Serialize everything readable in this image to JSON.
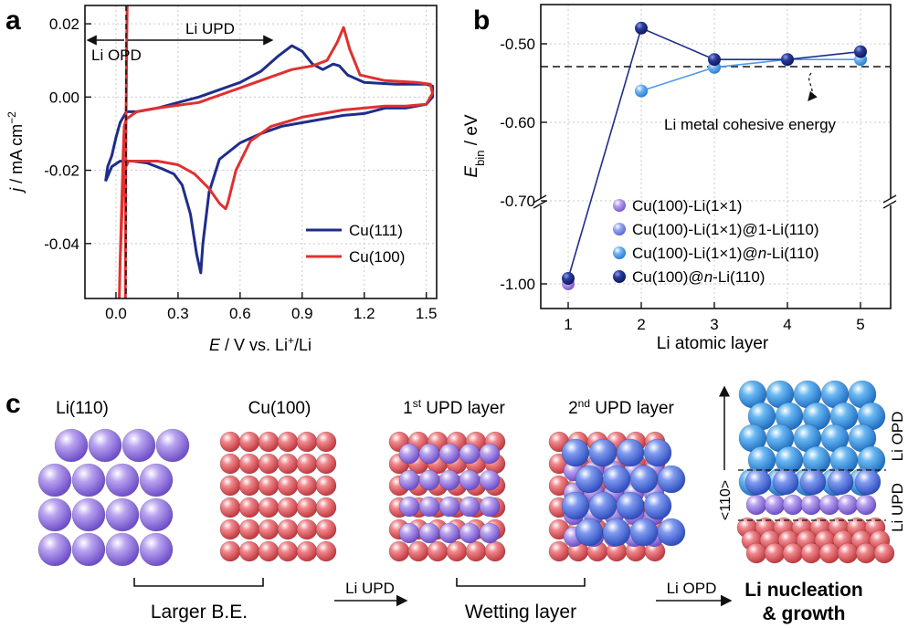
{
  "chart_data": [
    {
      "panel": "a",
      "type": "line",
      "xlabel": "E / V vs. Li⁺/Li",
      "ylabel": "j / mA cm⁻²",
      "xlim": [
        -0.15,
        1.55
      ],
      "ylim": [
        -0.055,
        0.025
      ],
      "xticks": [
        "0.0",
        "0.3",
        "0.6",
        "0.9",
        "1.2",
        "1.5"
      ],
      "yticks": [
        "0.02",
        "0.00",
        "-0.02",
        "-0.04"
      ],
      "legend_placement": "bottom-right",
      "grid": true,
      "annotations": {
        "upd": "Li UPD",
        "opd": "Li OPD"
      },
      "series": [
        {
          "name": "Cu(111)",
          "color": "#1f2d8a",
          "points": [
            [
              -0.05,
              -0.023
            ],
            [
              -0.04,
              -0.019
            ],
            [
              -0.02,
              -0.016
            ],
            [
              0.0,
              -0.011
            ],
            [
              0.02,
              -0.007
            ],
            [
              0.05,
              -0.004
            ],
            [
              0.1,
              -0.004
            ],
            [
              0.15,
              -0.0035
            ],
            [
              0.2,
              -0.003
            ],
            [
              0.3,
              -0.0015
            ],
            [
              0.4,
              0.0
            ],
            [
              0.5,
              0.002
            ],
            [
              0.6,
              0.004
            ],
            [
              0.7,
              0.007
            ],
            [
              0.78,
              0.011
            ],
            [
              0.85,
              0.014
            ],
            [
              0.9,
              0.0125
            ],
            [
              0.95,
              0.009
            ],
            [
              1.0,
              0.0075
            ],
            [
              1.05,
              0.009
            ],
            [
              1.08,
              0.0085
            ],
            [
              1.12,
              0.006
            ],
            [
              1.2,
              0.004
            ],
            [
              1.35,
              0.0035
            ],
            [
              1.5,
              0.0035
            ],
            [
              1.53,
              0.003
            ],
            [
              1.53,
              0.0
            ],
            [
              1.5,
              -0.002
            ],
            [
              1.4,
              -0.003
            ],
            [
              1.3,
              -0.003
            ],
            [
              1.2,
              -0.0045
            ],
            [
              1.1,
              -0.005
            ],
            [
              1.0,
              -0.006
            ],
            [
              0.9,
              -0.007
            ],
            [
              0.8,
              -0.008
            ],
            [
              0.7,
              -0.01
            ],
            [
              0.6,
              -0.0125
            ],
            [
              0.5,
              -0.017
            ],
            [
              0.45,
              -0.026
            ],
            [
              0.42,
              -0.04
            ],
            [
              0.41,
              -0.048
            ],
            [
              0.39,
              -0.043
            ],
            [
              0.36,
              -0.032
            ],
            [
              0.32,
              -0.024
            ],
            [
              0.28,
              -0.021
            ],
            [
              0.22,
              -0.0195
            ],
            [
              0.15,
              -0.018
            ],
            [
              0.08,
              -0.0175
            ],
            [
              0.02,
              -0.0175
            ],
            [
              -0.02,
              -0.019
            ],
            [
              -0.05,
              -0.023
            ]
          ]
        },
        {
          "name": "Cu(100)",
          "color": "#e03030",
          "points": [
            [
              0.015,
              -0.057
            ],
            [
              0.02,
              -0.045
            ],
            [
              0.025,
              -0.035
            ],
            [
              0.03,
              -0.025
            ],
            [
              0.035,
              -0.015
            ],
            [
              0.04,
              -0.008
            ],
            [
              0.05,
              -0.006
            ],
            [
              0.1,
              -0.004
            ],
            [
              0.2,
              -0.003
            ],
            [
              0.4,
              -0.0015
            ],
            [
              0.6,
              0.0025
            ],
            [
              0.75,
              0.0055
            ],
            [
              0.85,
              0.0075
            ],
            [
              0.95,
              0.0085
            ],
            [
              1.02,
              0.01
            ],
            [
              1.07,
              0.015
            ],
            [
              1.1,
              0.019
            ],
            [
              1.13,
              0.013
            ],
            [
              1.18,
              0.006
            ],
            [
              1.3,
              0.0045
            ],
            [
              1.45,
              0.004
            ],
            [
              1.52,
              0.0035
            ],
            [
              1.53,
              0.001
            ],
            [
              1.5,
              -0.002
            ],
            [
              1.4,
              -0.0025
            ],
            [
              1.3,
              -0.0025
            ],
            [
              1.1,
              -0.0035
            ],
            [
              0.9,
              -0.0055
            ],
            [
              0.75,
              -0.008
            ],
            [
              0.65,
              -0.012
            ],
            [
              0.58,
              -0.02
            ],
            [
              0.54,
              -0.029
            ],
            [
              0.53,
              -0.0305
            ],
            [
              0.5,
              -0.029
            ],
            [
              0.45,
              -0.025
            ],
            [
              0.38,
              -0.021
            ],
            [
              0.3,
              -0.0185
            ],
            [
              0.2,
              -0.0175
            ],
            [
              0.1,
              -0.0175
            ],
            [
              0.06,
              -0.0175
            ],
            [
              0.04,
              -0.02
            ],
            [
              0.03,
              -0.03
            ],
            [
              0.02,
              -0.045
            ],
            [
              0.015,
              -0.057
            ]
          ]
        },
        {
          "name": "",
          "color": "#e03030",
          "points": [
            [
              0.055,
              0.028
            ],
            [
              0.052,
              0.015
            ],
            [
              0.05,
              0.002
            ],
            [
              0.048,
              -0.01
            ],
            [
              0.047,
              -0.02
            ],
            [
              0.046,
              -0.035
            ],
            [
              0.045,
              -0.057
            ]
          ]
        }
      ]
    },
    {
      "panel": "b",
      "type": "line",
      "xlabel": "Li atomic layer",
      "ylabel": "E_bin / eV",
      "ylabel_main": "E",
      "ylabel_sub": "bin",
      "ylabel_rest": " / eV",
      "categories": [
        1,
        2,
        3,
        4,
        5
      ],
      "yticks": [
        "-0.50",
        "-0.60",
        "-0.70",
        "-1.00"
      ],
      "y_axis_break": true,
      "reference_line": {
        "value": -0.53,
        "label": "Li metal cohesive energy"
      },
      "legend_placement": "bottom-center",
      "series": [
        {
          "name": "Cu(100)-Li(1×1)",
          "color": "#a884e0",
          "values": [
            -1.0,
            null,
            null,
            null,
            null
          ]
        },
        {
          "name": "Cu(100)-Li(1×1)@1-Li(110)",
          "color": "#7f8ee6",
          "values": [
            null,
            -0.56,
            null,
            null,
            null
          ]
        },
        {
          "name": "Cu(100)-Li(1×1)@n-Li(110)",
          "name_parts": [
            "Cu(100)-Li(1×1)@",
            "n",
            "-Li(110)"
          ],
          "color": "#4c9be8",
          "values": [
            null,
            -0.56,
            -0.53,
            -0.52,
            -0.52
          ]
        },
        {
          "name": "Cu(100)@n-Li(110)",
          "name_parts": [
            "Cu(100)@",
            "n",
            "-Li(110)"
          ],
          "color": "#1f2d8a",
          "values": [
            -0.98,
            -0.48,
            -0.52,
            -0.52,
            -0.51
          ]
        }
      ]
    }
  ],
  "panels": {
    "a": "a",
    "b": "b",
    "c": "c"
  },
  "panel_c": {
    "titles": {
      "li110": "Li(110)",
      "cu100": "Cu(100)",
      "upd1_sup": "st",
      "upd1_num": "1",
      "upd1_rest": " UPD layer",
      "upd2_num": "2",
      "upd2_sup": "nd",
      "upd2_rest": " UPD layer"
    },
    "captions": {
      "larger_be": "Larger B.E.",
      "wetting": "Wetting layer",
      "nucleation_1": "Li nucleation",
      "nucleation_2": "& growth"
    },
    "arrows": {
      "upd": "Li UPD",
      "opd": "Li OPD"
    },
    "side_labels": {
      "direction": "<110>",
      "opd": "Li OPD",
      "upd": "Li UPD"
    },
    "colors": {
      "li": "#9b7fe3",
      "cu": "#e5636a",
      "upd2": "#5577e0",
      "bulk": "#3f9be8"
    }
  }
}
